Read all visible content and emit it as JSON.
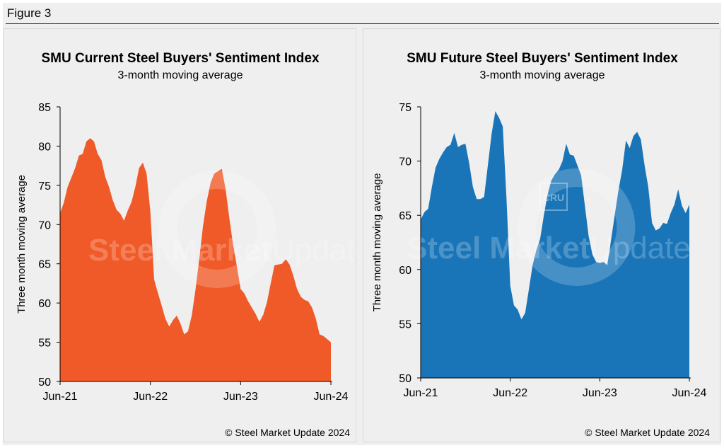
{
  "figure_label": "Figure 3",
  "watermark": {
    "brand_bold": "Steel Market",
    "brand_light": "Update",
    "logo": "CRU"
  },
  "chart_data": [
    {
      "type": "area",
      "title": "SMU Current Steel Buyers' Sentiment Index",
      "subtitle": "3-month moving average",
      "ylabel": "Three month moving average",
      "xlabel": "",
      "ylim": [
        50,
        85
      ],
      "yticks": [
        50,
        55,
        60,
        65,
        70,
        75,
        80,
        85
      ],
      "xtick_labels": [
        "Jun-21",
        "Jun-22",
        "Jun-23",
        "Jun-24"
      ],
      "xtick_index": [
        0,
        24,
        48,
        72
      ],
      "color": "#f05a28",
      "copyright": "© Steel Market Update 2024",
      "values": [
        71.5,
        72.8,
        74.8,
        76.0,
        77.2,
        78.8,
        79.0,
        80.6,
        81.0,
        80.6,
        79.0,
        78.2,
        76.1,
        74.8,
        73.1,
        71.9,
        71.4,
        70.5,
        71.8,
        72.9,
        74.8,
        77.2,
        77.9,
        76.5,
        71.6,
        63.0,
        61.3,
        59.7,
        58.0,
        57.0,
        57.8,
        58.4,
        57.4,
        56.0,
        56.4,
        58.4,
        61.7,
        65.6,
        69.8,
        73.0,
        75.3,
        76.5,
        76.8,
        77.1,
        74.5,
        70.8,
        67.4,
        64.7,
        61.8,
        61.2,
        60.2,
        59.4,
        58.6,
        57.6,
        58.5,
        60.1,
        62.5,
        64.8,
        64.9,
        65.0,
        65.6,
        64.9,
        63.5,
        61.8,
        60.8,
        60.4,
        60.2,
        59.4,
        58.0,
        56.0,
        55.8,
        55.4,
        55.0
      ]
    },
    {
      "type": "area",
      "title": "SMU Future Steel Buyers' Sentiment Index",
      "subtitle": "3-month moving average",
      "ylabel": "Three month moving average",
      "xlabel": "",
      "ylim": [
        50,
        75
      ],
      "yticks": [
        50,
        55,
        60,
        65,
        70,
        75
      ],
      "xtick_labels": [
        "Jun-21",
        "Jun-22",
        "Jun-23",
        "Jun-24"
      ],
      "xtick_index": [
        0,
        24,
        48,
        72
      ],
      "color": "#1a75b8",
      "copyright": "© Steel Market Update 2024",
      "values": [
        64.6,
        65.3,
        65.6,
        67.6,
        69.4,
        70.2,
        70.8,
        71.3,
        71.5,
        72.6,
        71.3,
        71.5,
        71.6,
        69.8,
        67.6,
        66.5,
        66.5,
        66.7,
        69.6,
        72.5,
        74.6,
        74.0,
        73.2,
        66.5,
        58.5,
        56.7,
        56.3,
        55.4,
        56.0,
        58.2,
        60.4,
        61.8,
        62.8,
        65.0,
        66.9,
        68.2,
        68.8,
        69.2,
        70.0,
        71.6,
        70.6,
        70.5,
        69.6,
        68.7,
        65.9,
        63.1,
        61.4,
        60.7,
        60.6,
        60.7,
        60.4,
        62.7,
        65.0,
        67.3,
        69.2,
        71.9,
        71.2,
        72.3,
        72.7,
        72.0,
        69.6,
        67.6,
        64.3,
        63.6,
        63.8,
        64.3,
        64.2,
        65.2,
        66.0,
        67.4,
        65.9,
        65.2,
        66.0
      ]
    }
  ]
}
